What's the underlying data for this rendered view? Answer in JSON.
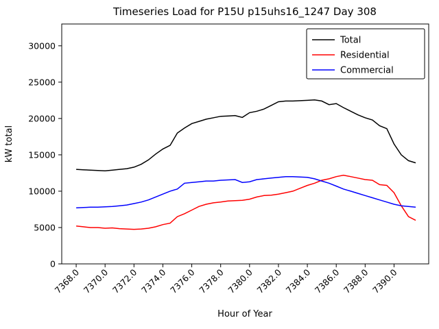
{
  "chart_data": {
    "type": "line",
    "title": "Timeseries Load for P15U p15uhs16_1247  Day 308",
    "xlabel": "Hour of Year",
    "ylabel": "kW total",
    "xlim": [
      7367.0,
      7392.4
    ],
    "ylim": [
      0,
      33000
    ],
    "grid": false,
    "legend_position": "upper right",
    "xticks": [
      7368,
      7370,
      7372,
      7374,
      7376,
      7378,
      7380,
      7382,
      7384,
      7386,
      7388,
      7390
    ],
    "xtick_labels": [
      "7368.0",
      "7370.0",
      "7372.0",
      "7374.0",
      "7376.0",
      "7378.0",
      "7380.0",
      "7382.0",
      "7384.0",
      "7386.0",
      "7388.0",
      "7390.0"
    ],
    "yticks": [
      0,
      5000,
      10000,
      15000,
      20000,
      25000,
      30000
    ],
    "ytick_labels": [
      "0",
      "5000",
      "10000",
      "15000",
      "20000",
      "25000",
      "30000"
    ],
    "x": [
      7368.0,
      7368.5,
      7369.0,
      7369.5,
      7370.0,
      7370.5,
      7371.0,
      7371.5,
      7372.0,
      7372.5,
      7373.0,
      7373.5,
      7374.0,
      7374.5,
      7375.0,
      7375.5,
      7376.0,
      7376.5,
      7377.0,
      7377.5,
      7378.0,
      7378.5,
      7379.0,
      7379.5,
      7380.0,
      7380.5,
      7381.0,
      7381.5,
      7382.0,
      7382.5,
      7383.0,
      7383.5,
      7384.0,
      7384.5,
      7385.0,
      7385.5,
      7386.0,
      7386.5,
      7387.0,
      7387.5,
      7388.0,
      7388.5,
      7389.0,
      7389.5,
      7390.0,
      7390.5,
      7391.0,
      7391.5
    ],
    "series": [
      {
        "name": "Total",
        "color": "#000000",
        "values": [
          13000,
          12950,
          12900,
          12850,
          12800,
          12900,
          13000,
          13100,
          13300,
          13700,
          14300,
          15100,
          15800,
          16300,
          18000,
          18700,
          19300,
          19600,
          19900,
          20100,
          20300,
          20350,
          20400,
          20150,
          20800,
          21000,
          21300,
          21800,
          22300,
          22400,
          22400,
          22450,
          22500,
          22550,
          22400,
          21900,
          22050,
          21500,
          21000,
          20500,
          20100,
          19800,
          19000,
          18600,
          16500,
          15000,
          14200,
          13900
        ]
      },
      {
        "name": "Residential",
        "color": "#ff0000",
        "values": [
          5200,
          5100,
          5000,
          5000,
          4900,
          4950,
          4850,
          4800,
          4750,
          4800,
          4900,
          5100,
          5400,
          5600,
          6500,
          6900,
          7400,
          7900,
          8200,
          8400,
          8500,
          8650,
          8700,
          8750,
          8900,
          9200,
          9400,
          9450,
          9600,
          9800,
          10000,
          10400,
          10800,
          11100,
          11500,
          11700,
          12000,
          12200,
          12000,
          11800,
          11600,
          11500,
          10900,
          10800,
          9800,
          8000,
          6500,
          6000
        ]
      },
      {
        "name": "Commercial",
        "color": "#0000ff",
        "values": [
          7700,
          7750,
          7800,
          7800,
          7850,
          7900,
          8000,
          8100,
          8300,
          8500,
          8800,
          9200,
          9600,
          10000,
          10300,
          11100,
          11200,
          11300,
          11400,
          11400,
          11500,
          11550,
          11600,
          11200,
          11300,
          11600,
          11700,
          11800,
          11900,
          12000,
          12000,
          11950,
          11900,
          11700,
          11400,
          11100,
          10700,
          10300,
          10000,
          9700,
          9400,
          9100,
          8800,
          8500,
          8200,
          8000,
          7900,
          7800
        ]
      }
    ]
  }
}
